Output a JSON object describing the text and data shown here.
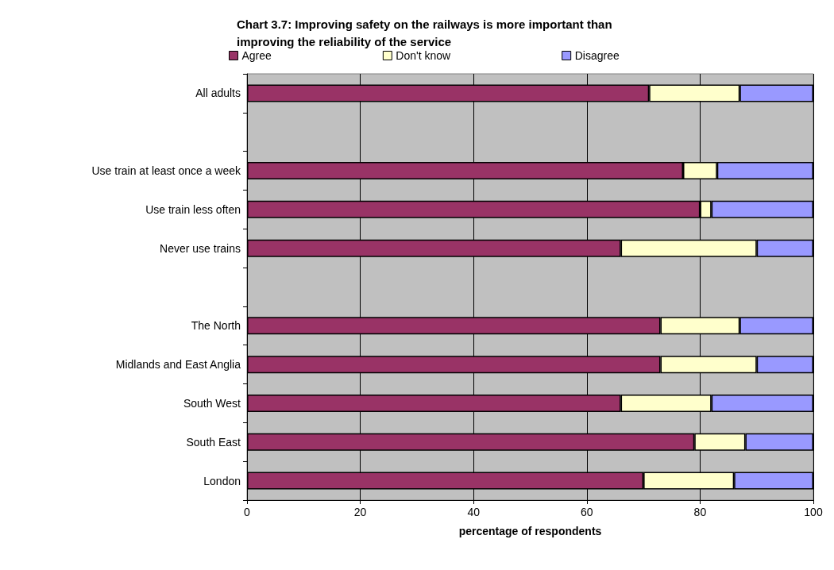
{
  "chart_data": {
    "type": "bar",
    "orientation": "horizontal",
    "stacked": true,
    "title": "Chart 3.7: Improving safety on the railways is more important than improving the reliability of the service",
    "xlabel": "percentage of respondents",
    "categories": [
      "All adults",
      null,
      "Use train at least once a week",
      "Use train less often",
      "Never use trains",
      null,
      "The North",
      "Midlands and East Anglia",
      "South West",
      "South East",
      "London"
    ],
    "series": [
      {
        "name": "Agree",
        "color": "#993366",
        "values": [
          71,
          null,
          77,
          80,
          66,
          null,
          73,
          73,
          66,
          79,
          70
        ]
      },
      {
        "name": "Don't know",
        "color": "#ffffcc",
        "values": [
          16,
          null,
          6,
          2,
          24,
          null,
          14,
          17,
          16,
          9,
          16
        ]
      },
      {
        "name": "Disagree",
        "color": "#9999ff",
        "values": [
          13,
          null,
          17,
          18,
          10,
          null,
          13,
          10,
          18,
          12,
          14
        ]
      }
    ],
    "xlim": [
      0,
      100
    ],
    "xticks": [
      0,
      20,
      40,
      60,
      80,
      100
    ],
    "grid": "x",
    "legend": "top left"
  }
}
